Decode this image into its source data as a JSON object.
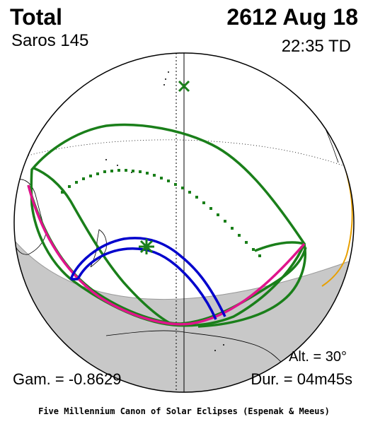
{
  "header": {
    "eclipse_type": "Total",
    "date": "2612 Aug 18",
    "saros": "Saros 145",
    "time": "22:35 TD"
  },
  "footer": {
    "gamma": "Gam. = -0.8629",
    "altitude": "Alt. = 30°",
    "duration": "Dur. = 04m45s",
    "credit": "Five Millennium Canon of Solar Eclipses (Espenak & Meeus)"
  },
  "colors": {
    "penumbra_outline": "#1a7f1a",
    "central_line": "#e0148c",
    "umbra_path": "#0000cc",
    "night_shading": "#c8c8c8",
    "coastlines": "#e8a000"
  },
  "markers": {
    "subsolar_point": "x-marker",
    "greatest_eclipse": "star-marker"
  }
}
